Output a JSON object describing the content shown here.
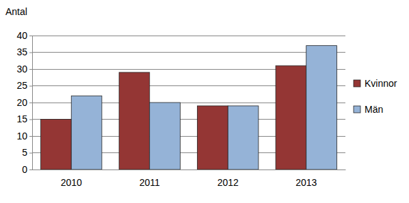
{
  "chart_data": {
    "type": "bar",
    "y_label": "Antal",
    "categories": [
      "2010",
      "2011",
      "2012",
      "2013"
    ],
    "series": [
      {
        "name": "Kvinnor",
        "color": "#943634",
        "values": [
          15,
          29,
          19,
          31
        ]
      },
      {
        "name": "Män",
        "color": "#95b3d7",
        "values": [
          22,
          20,
          19,
          37
        ]
      }
    ],
    "ylim": [
      0,
      40
    ],
    "yticks": [
      0,
      5,
      10,
      15,
      20,
      25,
      30,
      35,
      40
    ],
    "grid": true,
    "legend": "right"
  }
}
